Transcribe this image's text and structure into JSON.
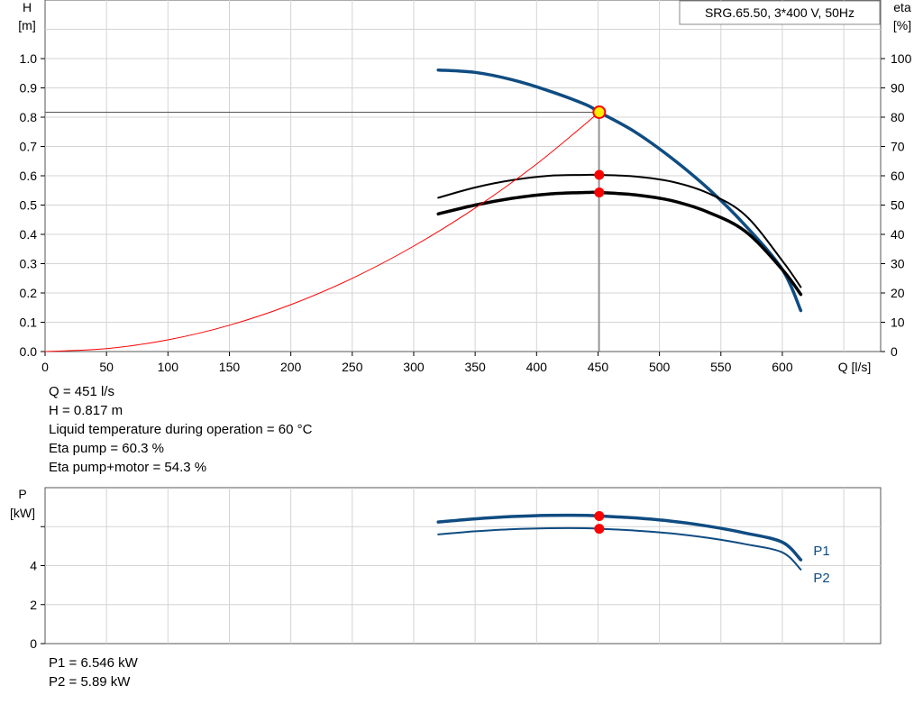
{
  "chart_data": [
    {
      "type": "line",
      "title": "SRG.65.50, 3*400 V, 50Hz",
      "xlabel": "Q [l/s]",
      "ylabel_left": [
        "H",
        "[m]"
      ],
      "ylabel_right": [
        "eta",
        "[%]"
      ],
      "xlim": [
        0,
        680
      ],
      "xticks": [
        0,
        50,
        100,
        150,
        200,
        250,
        300,
        350,
        400,
        450,
        500,
        550,
        600
      ],
      "ylim_left": [
        0,
        1.0
      ],
      "yticks_left": [
        "0.0",
        "0.1",
        "0.2",
        "0.3",
        "0.4",
        "0.5",
        "0.6",
        "0.7",
        "0.8",
        "0.9",
        "1.0"
      ],
      "ylim_right": [
        0,
        100
      ],
      "yticks_right": [
        "0",
        "10",
        "20",
        "30",
        "40",
        "50",
        "60",
        "70",
        "80",
        "90",
        "100"
      ],
      "grid": true,
      "series": [
        {
          "axis": "left",
          "color": "#0f4c81",
          "x": [
            320,
            350,
            380,
            410,
            440,
            451,
            480,
            510,
            540,
            570,
            600,
            615
          ],
          "y": [
            0.961,
            0.953,
            0.928,
            0.89,
            0.843,
            0.817,
            0.75,
            0.66,
            0.555,
            0.43,
            0.28,
            0.14
          ]
        },
        {
          "axis": "right",
          "color": "#000000",
          "x": [
            320,
            350,
            380,
            410,
            440,
            451,
            480,
            510,
            540,
            570,
            600,
            615
          ],
          "y": [
            52.5,
            56.0,
            58.5,
            60.0,
            60.3,
            60.3,
            59.8,
            58.0,
            54.0,
            46.5,
            31.0,
            22.0
          ]
        },
        {
          "axis": "right",
          "color": "#000000",
          "x": [
            320,
            350,
            380,
            410,
            440,
            451,
            480,
            510,
            540,
            570,
            600,
            615
          ],
          "y": [
            47.0,
            50.0,
            52.3,
            53.8,
            54.3,
            54.3,
            53.5,
            51.5,
            47.5,
            41.0,
            28.0,
            19.5
          ]
        },
        {
          "axis": "left",
          "color": "#ff0000",
          "x": [
            0,
            50,
            100,
            150,
            200,
            250,
            300,
            350,
            400,
            451
          ],
          "y": [
            0.0,
            0.01,
            0.04,
            0.09,
            0.16,
            0.25,
            0.36,
            0.49,
            0.64,
            0.817
          ]
        }
      ],
      "operating_point": {
        "q": 451,
        "h": 0.817,
        "eta_pump": 60.3,
        "eta_pump_motor": 54.3
      }
    },
    {
      "type": "line",
      "ylabel": [
        "P",
        "[kW]"
      ],
      "xlim": [
        0,
        680
      ],
      "ylim": [
        0,
        8.0
      ],
      "yticks": [
        "0",
        "2",
        "4"
      ],
      "grid": true,
      "series": [
        {
          "name": "P1",
          "color": "#0f4c81",
          "x": [
            320,
            350,
            380,
            410,
            440,
            451,
            480,
            510,
            540,
            570,
            600,
            615
          ],
          "y": [
            6.24,
            6.4,
            6.52,
            6.58,
            6.58,
            6.546,
            6.45,
            6.28,
            6.02,
            5.67,
            5.2,
            4.3
          ]
        },
        {
          "name": "P2",
          "color": "#0f4c81",
          "x": [
            320,
            350,
            380,
            410,
            440,
            451,
            480,
            510,
            540,
            570,
            600,
            615
          ],
          "y": [
            5.6,
            5.76,
            5.87,
            5.92,
            5.92,
            5.89,
            5.8,
            5.65,
            5.42,
            5.1,
            4.68,
            3.8
          ]
        }
      ],
      "operating_point": {
        "q": 451,
        "p1": 6.546,
        "p2": 5.89
      }
    }
  ],
  "info_top": [
    "Q = 451 l/s",
    "H = 0.817 m",
    "Liquid temperature during operation = 60 °C",
    "Eta pump = 60.3 %",
    "Eta pump+motor = 54.3 %"
  ],
  "info_bottom": [
    "P1 = 6.546 kW",
    "P2 = 5.89 kW"
  ],
  "colors": {
    "pump_curve": "#0f4c81",
    "eta_curves": "#000000",
    "system_curve": "#ff0000",
    "duty_marker": "#ff0000",
    "op_marker_fill": "#ffee00",
    "grid": "#d4d4d4",
    "label_blue": "#0f4c81"
  }
}
